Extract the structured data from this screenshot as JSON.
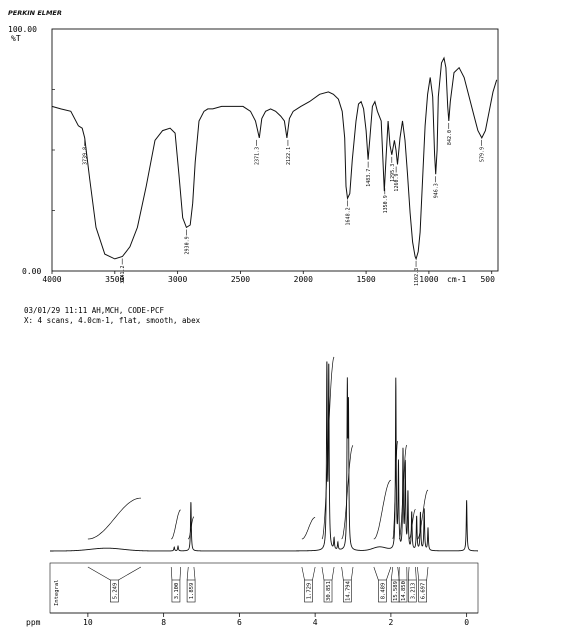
{
  "header": {
    "brand": "PERKIN ELMER",
    "info_line_1": "03/01/29 11:11 AH,MCH, CODE-PCF",
    "info_line_2": "X: 4 scans, 4.0cm-1, flat, smooth, abex"
  },
  "chart_data": [
    {
      "type": "line",
      "title": "",
      "xlabel": "cm-1",
      "ylabel": "%T",
      "y_top_label": "100.00",
      "y_bottom_label": "0.00",
      "xlim": [
        4000,
        450
      ],
      "ylim": [
        0,
        100
      ],
      "x_ticks": [
        4000,
        3500,
        3000,
        2500,
        2000,
        1500,
        1000,
        500
      ],
      "x_tick_labels": [
        "4000",
        "3500",
        "3000",
        "2500",
        "2000",
        "1500",
        "1000",
        "500"
      ],
      "x_unit_label": "cm-1",
      "series": [
        {
          "x": [
            4000,
            3930,
            3850,
            3790,
            3760,
            3740,
            3700,
            3650,
            3580,
            3500,
            3440,
            3380,
            3320,
            3250,
            3180,
            3120,
            3060,
            3020,
            2990,
            2960,
            2930,
            2900,
            2880,
            2860,
            2830,
            2790,
            2760,
            2720,
            2650,
            2560,
            2480,
            2420,
            2380,
            2350,
            2330,
            2300,
            2260,
            2220,
            2180,
            2150,
            2130,
            2110,
            2080,
            2020,
            1950,
            1870,
            1800,
            1760,
            1720,
            1690,
            1670,
            1660,
            1648,
            1630,
            1610,
            1580,
            1560,
            1540,
            1520,
            1500,
            1484,
            1470,
            1450,
            1430,
            1410,
            1380,
            1355,
            1340,
            1325,
            1310,
            1295,
            1275,
            1262,
            1250,
            1230,
            1210,
            1190,
            1170,
            1150,
            1130,
            1110,
            1102,
            1085,
            1070,
            1050,
            1030,
            1010,
            990,
            970,
            955,
            946,
            935,
            925,
            900,
            880,
            865,
            850,
            842,
            830,
            800,
            760,
            720,
            680,
            640,
            610,
            579,
            550,
            520,
            490,
            460
          ],
          "y": [
            68,
            67,
            66,
            60,
            59,
            55,
            38,
            18,
            7,
            5,
            6,
            10,
            18,
            35,
            54,
            58,
            59,
            57,
            40,
            22,
            18,
            19,
            28,
            45,
            62,
            66,
            67,
            67,
            68,
            68,
            68,
            66,
            62,
            55,
            63,
            66,
            67,
            66,
            64,
            62,
            55,
            63,
            66,
            68,
            70,
            73,
            74,
            73,
            71,
            66,
            55,
            35,
            30,
            32,
            46,
            62,
            69,
            70,
            67,
            58,
            46,
            55,
            68,
            70,
            66,
            62,
            33,
            48,
            62,
            52,
            48,
            54,
            50,
            44,
            55,
            62,
            54,
            40,
            24,
            12,
            6,
            5,
            8,
            16,
            38,
            60,
            73,
            80,
            72,
            48,
            40,
            50,
            72,
            86,
            88,
            84,
            68,
            62,
            70,
            82,
            84,
            80,
            72,
            64,
            58,
            55,
            58,
            66,
            74,
            79
          ]
        }
      ],
      "peak_labels": [
        {
          "x": 3739.8,
          "y": 55,
          "label": "3739.8"
        },
        {
          "x": 3441.2,
          "y": 6,
          "label": "3441.2"
        },
        {
          "x": 2930.9,
          "y": 18,
          "label": "2930.9"
        },
        {
          "x": 2371.3,
          "y": 55,
          "label": "2371.3"
        },
        {
          "x": 2122.1,
          "y": 55,
          "label": "2122.1"
        },
        {
          "x": 1648.2,
          "y": 30,
          "label": "1648.2"
        },
        {
          "x": 1483.7,
          "y": 46,
          "label": "1483.7"
        },
        {
          "x": 1350.9,
          "y": 35,
          "label": "1350.9"
        },
        {
          "x": 1295.3,
          "y": 48,
          "label": "1295.3"
        },
        {
          "x": 1260.9,
          "y": 44,
          "label": "1260.9"
        },
        {
          "x": 1102.3,
          "y": 5,
          "label": "1102.3"
        },
        {
          "x": 946.3,
          "y": 40,
          "label": "946.3"
        },
        {
          "x": 842.0,
          "y": 62,
          "label": "842.0"
        },
        {
          "x": 579.9,
          "y": 55,
          "label": "579.9"
        }
      ]
    },
    {
      "type": "line",
      "title": "",
      "xlabel": "ppm",
      "ylabel": "",
      "xlim": [
        11,
        -0.3
      ],
      "x_ticks": [
        10,
        8,
        6,
        4,
        2,
        0
      ],
      "x_tick_labels": [
        "10",
        "8",
        "6",
        "4",
        "2",
        "0"
      ],
      "axis_label": "ppm",
      "integral_axis_label": "Integral",
      "peaks": [
        {
          "ppm": 7.72,
          "h": 0.02
        },
        {
          "ppm": 7.62,
          "h": 0.025
        },
        {
          "ppm": 7.28,
          "h": 0.26
        },
        {
          "ppm": 3.69,
          "h": 1.0
        },
        {
          "ppm": 3.64,
          "h": 0.95
        },
        {
          "ppm": 3.5,
          "h": 0.06
        },
        {
          "ppm": 3.4,
          "h": 0.04
        },
        {
          "ppm": 3.15,
          "h": 0.82
        },
        {
          "ppm": 3.12,
          "h": 0.7
        },
        {
          "ppm": 1.87,
          "h": 0.9
        },
        {
          "ppm": 1.8,
          "h": 0.45
        },
        {
          "ppm": 1.68,
          "h": 0.52
        },
        {
          "ppm": 1.62,
          "h": 0.45
        },
        {
          "ppm": 1.55,
          "h": 0.3
        },
        {
          "ppm": 1.45,
          "h": 0.2
        },
        {
          "ppm": 1.32,
          "h": 0.18
        },
        {
          "ppm": 1.22,
          "h": 0.2
        },
        {
          "ppm": 1.12,
          "h": 0.22
        },
        {
          "ppm": 1.02,
          "h": 0.12
        },
        {
          "ppm": 0.0,
          "h": 0.27
        }
      ],
      "broad_humps": [
        {
          "ppm": 9.5,
          "h": 0.015,
          "w": 1.2
        },
        {
          "ppm": 2.3,
          "h": 0.02,
          "w": 0.5
        }
      ],
      "integrals": [
        {
          "from": 10.0,
          "to": 8.6,
          "value": "5.249"
        },
        {
          "from": 7.8,
          "to": 7.55,
          "value": "3.100"
        },
        {
          "from": 7.35,
          "to": 7.2,
          "value": "1.859"
        },
        {
          "from": 4.35,
          "to": 4.0,
          "value": "1.729"
        },
        {
          "from": 3.82,
          "to": 3.5,
          "value": "30.851"
        },
        {
          "from": 3.3,
          "to": 3.0,
          "value": "14.794"
        },
        {
          "from": 2.45,
          "to": 2.0,
          "value": "8.489"
        },
        {
          "from": 1.95,
          "to": 1.82,
          "value": "15.589"
        },
        {
          "from": 1.78,
          "to": 1.58,
          "value": "14.850"
        },
        {
          "from": 1.52,
          "to": 1.35,
          "value": "3.213"
        },
        {
          "from": 1.3,
          "to": 1.02,
          "value": "6.697"
        }
      ]
    }
  ]
}
